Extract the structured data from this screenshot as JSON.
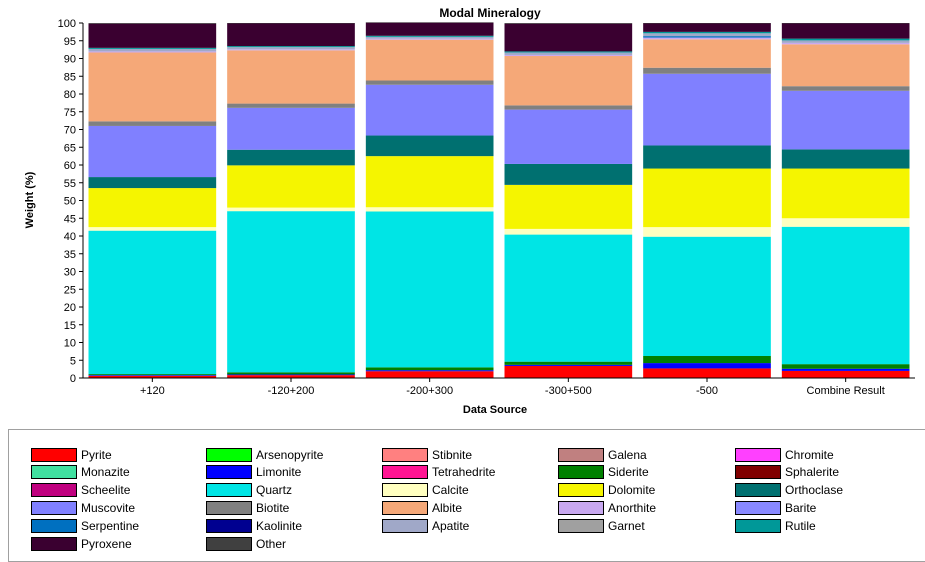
{
  "chart_data": {
    "type": "bar",
    "stacked": true,
    "title": "Modal Mineralogy",
    "xlabel": "Data Source",
    "ylabel": "Weight (%)",
    "ylim": [
      0,
      100
    ],
    "yticks": [
      0,
      5,
      10,
      15,
      20,
      25,
      30,
      35,
      40,
      45,
      50,
      55,
      60,
      65,
      70,
      75,
      80,
      85,
      90,
      95,
      100
    ],
    "grid": false,
    "legend_position": "bottom",
    "categories": [
      "+120",
      "-120+200",
      "-200+300",
      "-300+500",
      "-500",
      "Combine Result"
    ],
    "series": [
      {
        "name": "Pyrite",
        "color": "#ff0000",
        "values": [
          0.6,
          0.8,
          1.9,
          3.4,
          2.7,
          2.0
        ]
      },
      {
        "name": "Arsenopyrite",
        "color": "#00ff00",
        "values": [
          0.0,
          0.0,
          0.0,
          0.0,
          0.0,
          0.0
        ]
      },
      {
        "name": "Stibnite",
        "color": "#ff8080",
        "values": [
          0.0,
          0.0,
          0.0,
          0.0,
          0.0,
          0.0
        ]
      },
      {
        "name": "Galena",
        "color": "#c08080",
        "values": [
          0.0,
          0.0,
          0.0,
          0.0,
          0.0,
          0.0
        ]
      },
      {
        "name": "Chromite",
        "color": "#ff40ff",
        "values": [
          0.0,
          0.0,
          0.0,
          0.0,
          0.0,
          0.0
        ]
      },
      {
        "name": "Monazite",
        "color": "#40e0a0",
        "values": [
          0.0,
          0.0,
          0.0,
          0.0,
          0.0,
          0.0
        ]
      },
      {
        "name": "Limonite",
        "color": "#0000ff",
        "values": [
          0.2,
          0.2,
          0.3,
          0.3,
          1.5,
          0.6
        ]
      },
      {
        "name": "Tetrahedrite",
        "color": "#ff1493",
        "values": [
          0.0,
          0.0,
          0.0,
          0.0,
          0.0,
          0.0
        ]
      },
      {
        "name": "Siderite",
        "color": "#008000",
        "values": [
          0.3,
          0.6,
          0.8,
          0.9,
          2.0,
          1.3
        ]
      },
      {
        "name": "Sphalerite",
        "color": "#800000",
        "values": [
          0.0,
          0.0,
          0.0,
          0.0,
          0.0,
          0.0
        ]
      },
      {
        "name": "Scheelite",
        "color": "#c0007f",
        "values": [
          0.0,
          0.0,
          0.0,
          0.0,
          0.0,
          0.0
        ]
      },
      {
        "name": "Quartz",
        "color": "#00e5e5",
        "values": [
          40.4,
          45.4,
          43.9,
          35.8,
          33.6,
          38.7
        ]
      },
      {
        "name": "Calcite",
        "color": "#ffffc0",
        "values": [
          1.0,
          1.0,
          1.2,
          1.6,
          2.7,
          2.4
        ]
      },
      {
        "name": "Dolomite",
        "color": "#f5f500",
        "values": [
          11.0,
          11.9,
          14.4,
          12.4,
          16.5,
          14.0
        ]
      },
      {
        "name": "Orthoclase",
        "color": "#007070",
        "values": [
          3.1,
          4.4,
          5.8,
          5.9,
          6.5,
          5.4
        ]
      },
      {
        "name": "Muscovite",
        "color": "#8080ff",
        "values": [
          14.4,
          11.8,
          14.3,
          15.3,
          20.2,
          16.5
        ]
      },
      {
        "name": "Biotite",
        "color": "#808080",
        "values": [
          1.3,
          1.2,
          1.2,
          1.2,
          1.7,
          1.3
        ]
      },
      {
        "name": "Albite",
        "color": "#f5a878",
        "values": [
          19.4,
          15.0,
          11.5,
          13.9,
          8.0,
          11.8
        ]
      },
      {
        "name": "Anorthite",
        "color": "#c8a8f0",
        "values": [
          0.3,
          0.3,
          0.3,
          0.3,
          0.5,
          0.4
        ]
      },
      {
        "name": "Barite",
        "color": "#8888ff",
        "values": [
          0.0,
          0.0,
          0.0,
          0.0,
          0.0,
          0.0
        ]
      },
      {
        "name": "Serpentine",
        "color": "#0070c0",
        "values": [
          0.0,
          0.0,
          0.0,
          0.0,
          0.4,
          0.0
        ]
      },
      {
        "name": "Kaolinite",
        "color": "#000090",
        "values": [
          0.0,
          0.0,
          0.0,
          0.0,
          0.0,
          0.0
        ]
      },
      {
        "name": "Apatite",
        "color": "#a0a8c8",
        "values": [
          0.7,
          0.6,
          0.5,
          0.7,
          0.8,
          0.7
        ]
      },
      {
        "name": "Garnet",
        "color": "#a0a0a0",
        "values": [
          0.0,
          0.0,
          0.0,
          0.0,
          0.0,
          0.0
        ]
      },
      {
        "name": "Rutile",
        "color": "#009898",
        "values": [
          0.3,
          0.3,
          0.3,
          0.3,
          0.4,
          0.5
        ]
      },
      {
        "name": "Pyroxene",
        "color": "#3a0030",
        "values": [
          6.8,
          6.4,
          3.7,
          7.8,
          2.4,
          4.3
        ]
      },
      {
        "name": "Other",
        "color": "#404040",
        "values": [
          0.2,
          0.1,
          0.1,
          0.2,
          0.1,
          0.1
        ]
      }
    ]
  }
}
